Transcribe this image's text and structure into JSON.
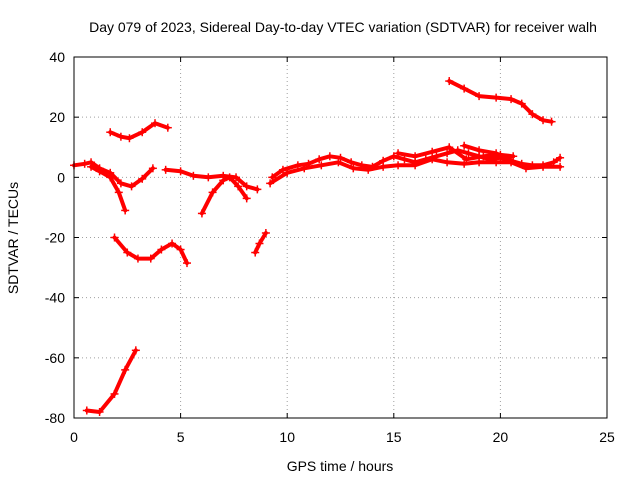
{
  "chart_data": {
    "type": "scatter",
    "title": "Day 079 of 2023, Sidereal Day-to-day VTEC variation (SDTVAR) for receiver walh",
    "xlabel": "GPS time / hours",
    "ylabel": "SDTVAR / TECUs",
    "xlim": [
      0,
      25
    ],
    "ylim": [
      -80,
      40
    ],
    "xticks": [
      0,
      5,
      10,
      15,
      20,
      25
    ],
    "yticks": [
      -80,
      -60,
      -40,
      -20,
      0,
      20,
      40
    ],
    "xtick_labels": [
      "0",
      "5",
      "10",
      "15",
      "20",
      "25"
    ],
    "ytick_labels": [
      "-80",
      "-60",
      "-40",
      "-20",
      "0",
      "20",
      "40"
    ],
    "grid": true,
    "marker": "+",
    "color": "#ff0000",
    "series": [
      {
        "name": "arc-1",
        "points": [
          [
            0,
            4
          ],
          [
            0.5,
            4.5
          ],
          [
            0.8,
            5
          ],
          [
            1.2,
            3
          ],
          [
            1.7,
            1.5
          ],
          [
            2.2,
            -2
          ],
          [
            2.7,
            -3
          ],
          [
            3.2,
            -0.5
          ],
          [
            3.7,
            3
          ]
        ]
      },
      {
        "name": "arc-2",
        "points": [
          [
            0.8,
            3.5
          ],
          [
            1.2,
            2
          ],
          [
            1.7,
            0
          ],
          [
            2.1,
            -5
          ],
          [
            2.4,
            -11
          ]
        ]
      },
      {
        "name": "arc-3",
        "points": [
          [
            1.7,
            15
          ],
          [
            2.2,
            13.5
          ],
          [
            2.6,
            13
          ],
          [
            3.2,
            15
          ],
          [
            3.8,
            18
          ],
          [
            4.4,
            16.5
          ]
        ]
      },
      {
        "name": "arc-4",
        "points": [
          [
            4.3,
            2.5
          ],
          [
            5,
            2
          ],
          [
            5.6,
            0.5
          ],
          [
            6.3,
            0
          ],
          [
            7,
            0.5
          ],
          [
            7.6,
            0
          ],
          [
            8.1,
            -3
          ],
          [
            8.6,
            -4
          ]
        ]
      },
      {
        "name": "arc-5",
        "points": [
          [
            6,
            -12
          ],
          [
            6.5,
            -5
          ],
          [
            7,
            -1
          ],
          [
            7.3,
            0
          ],
          [
            7.7,
            -3
          ],
          [
            8.1,
            -7
          ]
        ]
      },
      {
        "name": "arc-6",
        "points": [
          [
            1.9,
            -20
          ],
          [
            2.5,
            -25
          ],
          [
            3,
            -27
          ],
          [
            3.6,
            -27
          ],
          [
            4.1,
            -24
          ],
          [
            4.6,
            -22
          ],
          [
            5,
            -24
          ],
          [
            5.3,
            -28.5
          ]
        ]
      },
      {
        "name": "arc-7",
        "points": [
          [
            8.5,
            -25
          ],
          [
            8.7,
            -22
          ],
          [
            9,
            -18.5
          ]
        ]
      },
      {
        "name": "arc-8",
        "points": [
          [
            0.6,
            -77.5
          ],
          [
            1.2,
            -78
          ],
          [
            1.9,
            -72
          ],
          [
            2.4,
            -64
          ],
          [
            2.9,
            -57.5
          ]
        ]
      },
      {
        "name": "arc-9",
        "points": [
          [
            9.3,
            0
          ],
          [
            9.8,
            2.5
          ],
          [
            10.5,
            4
          ],
          [
            11,
            4.5
          ],
          [
            11.5,
            6
          ],
          [
            12,
            7
          ],
          [
            12.5,
            6.5
          ],
          [
            13,
            5
          ],
          [
            13.5,
            4
          ],
          [
            14,
            3.5
          ],
          [
            14.5,
            5.5
          ],
          [
            15,
            7
          ],
          [
            15.5,
            6
          ],
          [
            16,
            5
          ],
          [
            16.5,
            6
          ],
          [
            17,
            7
          ],
          [
            17.5,
            8
          ],
          [
            18,
            9
          ],
          [
            18.5,
            8
          ],
          [
            19,
            7
          ],
          [
            19.5,
            6
          ],
          [
            20,
            6.5
          ],
          [
            20.5,
            5.5
          ],
          [
            21,
            4.5
          ],
          [
            21.5,
            4
          ],
          [
            22,
            4
          ],
          [
            22.5,
            5
          ],
          [
            22.8,
            6.5
          ]
        ]
      },
      {
        "name": "arc-10",
        "points": [
          [
            9.2,
            -2
          ],
          [
            10,
            1.5
          ],
          [
            10.8,
            3
          ],
          [
            11.6,
            4
          ],
          [
            12.4,
            5
          ],
          [
            13.1,
            3
          ],
          [
            13.8,
            2.5
          ],
          [
            14.5,
            3.5
          ],
          [
            15.2,
            4
          ],
          [
            16,
            4
          ],
          [
            16.8,
            6
          ],
          [
            17.5,
            5
          ],
          [
            18.3,
            4.5
          ],
          [
            19,
            5
          ],
          [
            19.8,
            5
          ],
          [
            20.5,
            5
          ],
          [
            21.2,
            3
          ],
          [
            22,
            3.5
          ],
          [
            22.8,
            3.5
          ]
        ]
      },
      {
        "name": "arc-11",
        "points": [
          [
            15.2,
            8
          ],
          [
            16,
            7
          ],
          [
            16.8,
            8.5
          ],
          [
            17.6,
            10
          ],
          [
            18.4,
            6
          ],
          [
            19.2,
            7
          ],
          [
            20,
            7.5
          ],
          [
            20.6,
            7
          ]
        ]
      },
      {
        "name": "arc-12",
        "points": [
          [
            18.3,
            10.5
          ],
          [
            19,
            9
          ],
          [
            19.8,
            8
          ],
          [
            20.4,
            6
          ]
        ]
      },
      {
        "name": "arc-13",
        "points": [
          [
            17.6,
            32
          ],
          [
            18.3,
            29.5
          ],
          [
            19,
            27
          ],
          [
            19.8,
            26.5
          ],
          [
            20.5,
            26
          ],
          [
            21,
            24.5
          ],
          [
            21.5,
            21
          ],
          [
            22,
            19
          ],
          [
            22.4,
            18.5
          ]
        ]
      }
    ]
  }
}
